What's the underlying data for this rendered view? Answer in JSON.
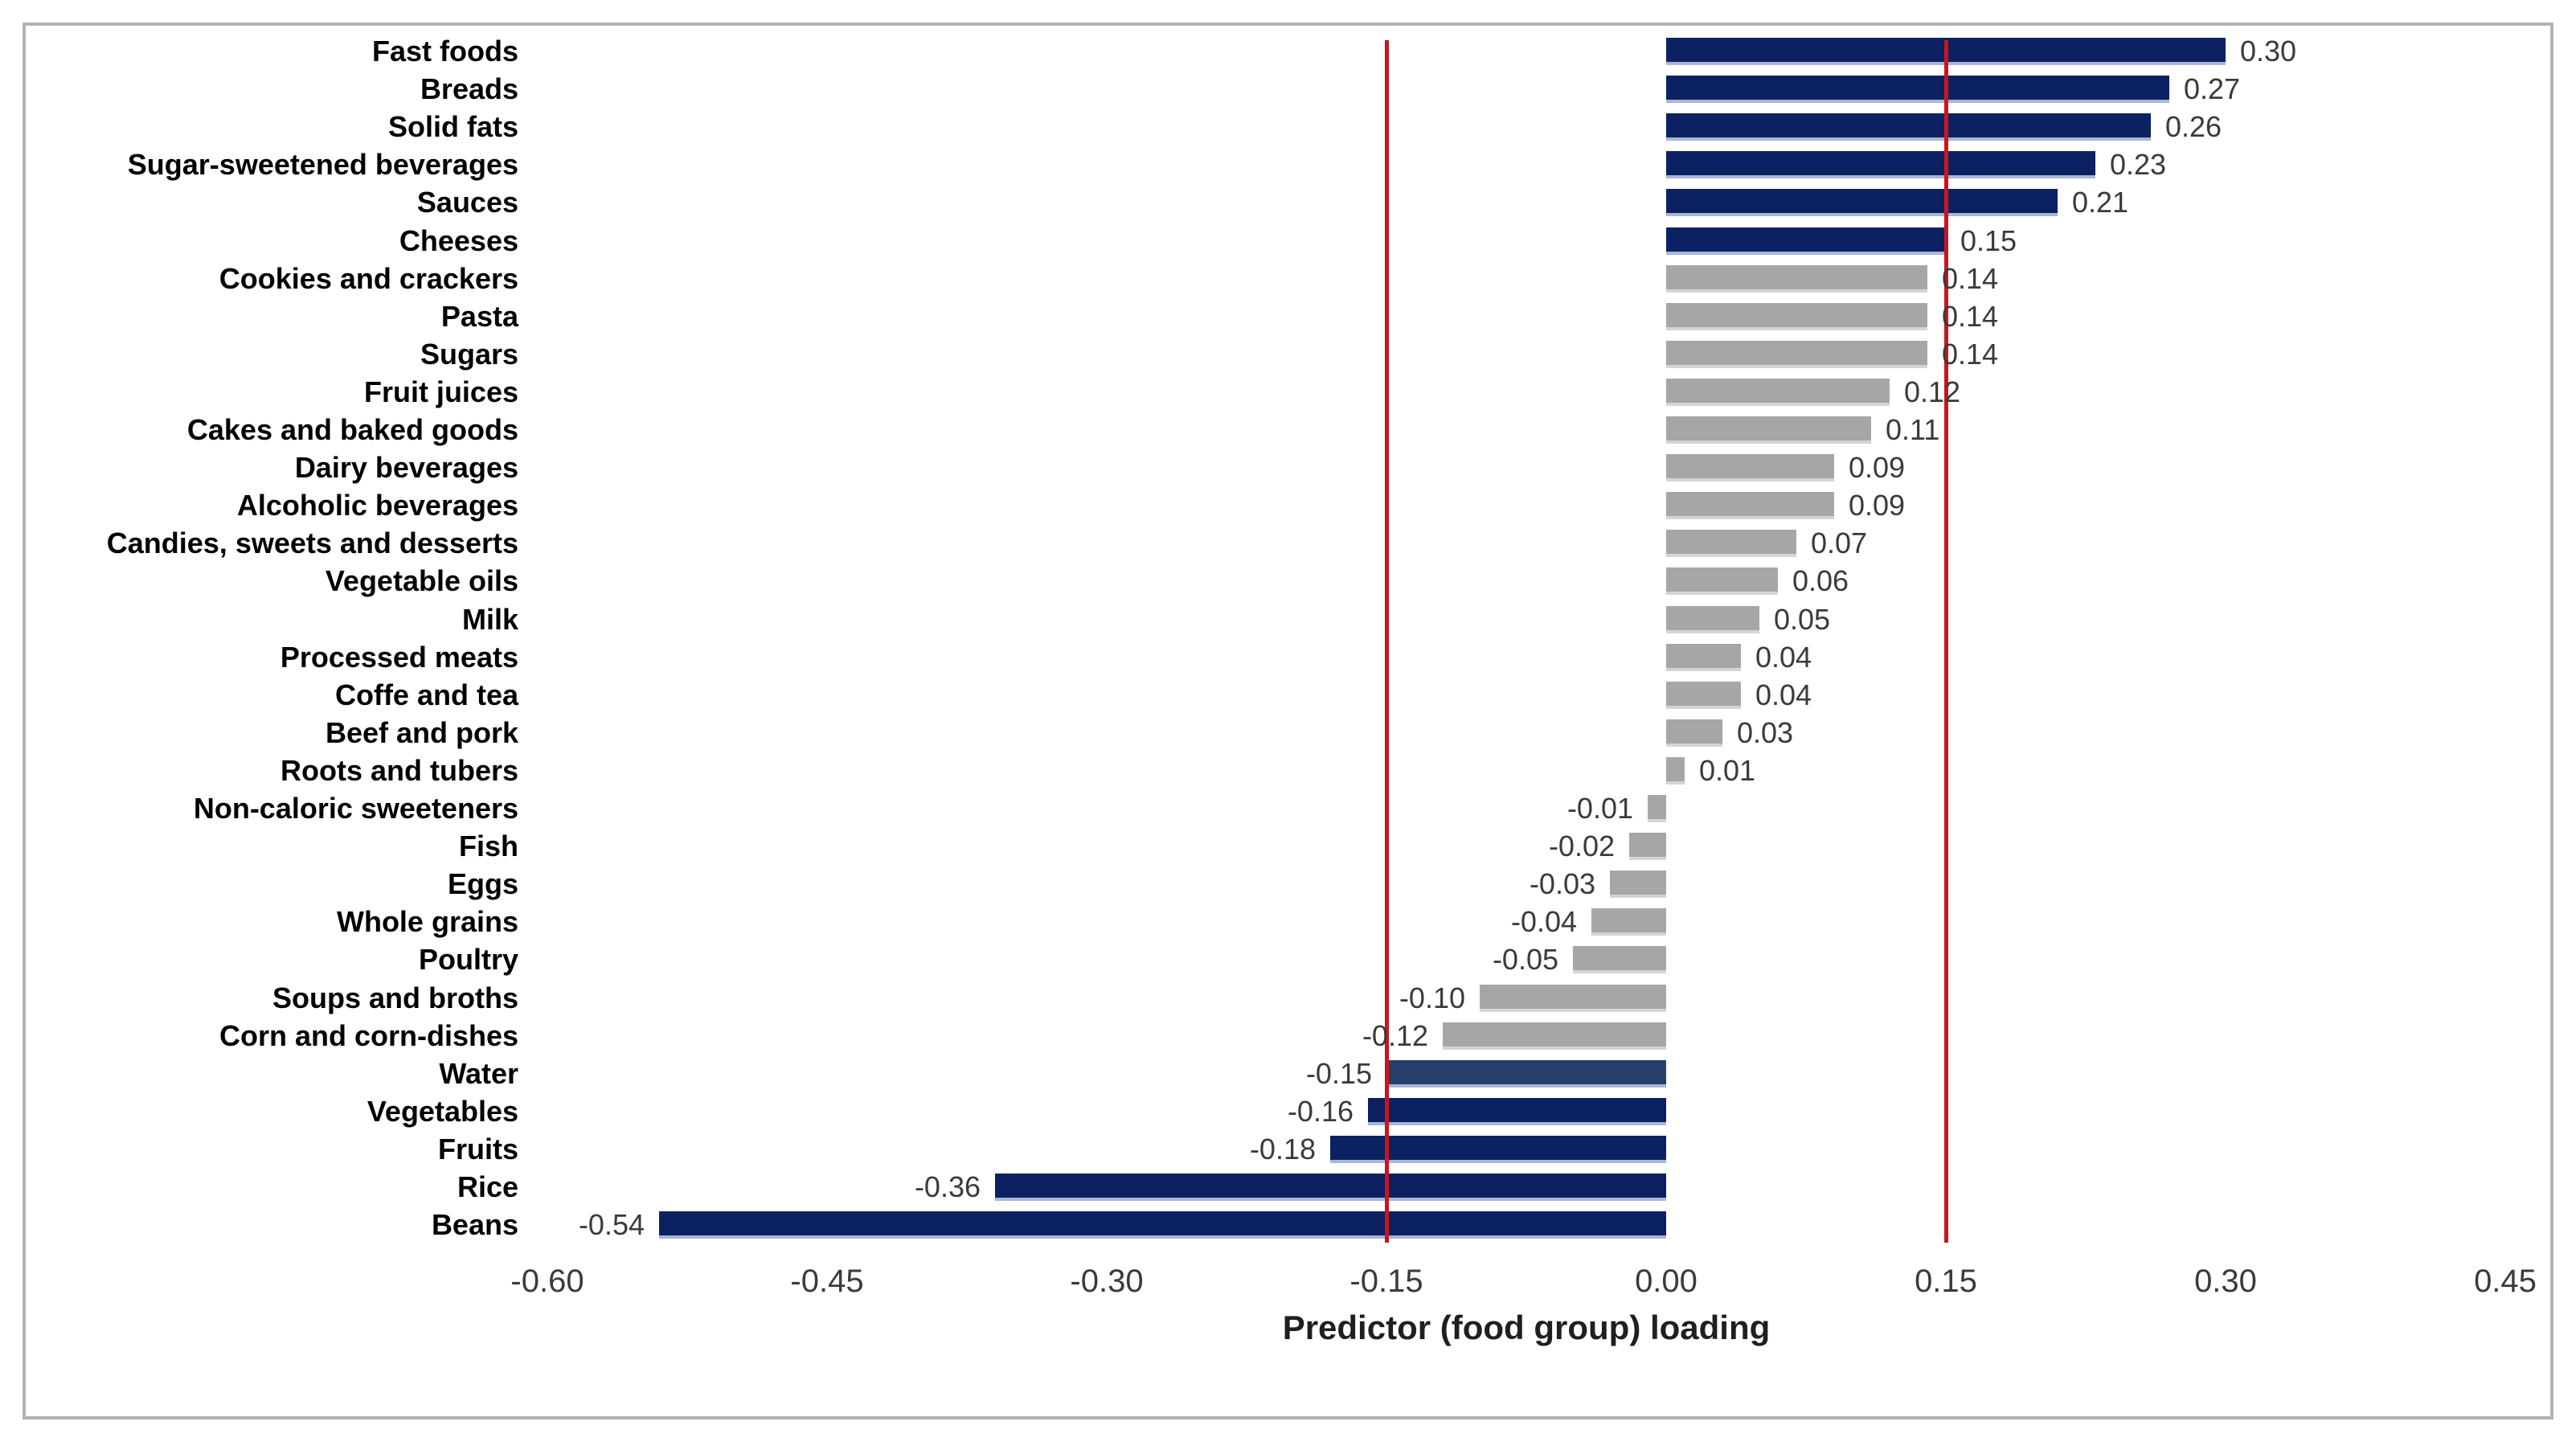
{
  "chart_data": {
    "type": "bar",
    "orientation": "horizontal",
    "xlabel": "Predictor (food group) loading",
    "xlim": [
      -0.6,
      0.45
    ],
    "xticks": [
      -0.6,
      -0.45,
      -0.3,
      -0.15,
      0.0,
      0.15,
      0.3,
      0.45
    ],
    "xtick_labels": [
      "-0.60",
      "-0.45",
      "-0.30",
      "-0.15",
      "0.00",
      "0.15",
      "0.30",
      "0.45"
    ],
    "grid": false,
    "legend": null,
    "threshold_lines": [
      -0.15,
      0.15
    ],
    "series": [
      {
        "name": "Predictor (food group) loading",
        "points": [
          {
            "label": "Fast foods",
            "value": 0.3,
            "display": "0.30",
            "color": "navy"
          },
          {
            "label": "Breads",
            "value": 0.27,
            "display": "0.27",
            "color": "navy"
          },
          {
            "label": "Solid fats",
            "value": 0.26,
            "display": "0.26",
            "color": "navy"
          },
          {
            "label": "Sugar-sweetened beverages",
            "value": 0.23,
            "display": "0.23",
            "color": "navy"
          },
          {
            "label": "Sauces",
            "value": 0.21,
            "display": "0.21",
            "color": "navy"
          },
          {
            "label": "Cheeses",
            "value": 0.15,
            "display": "0.15",
            "color": "navy"
          },
          {
            "label": "Cookies and crackers",
            "value": 0.14,
            "display": "0.14",
            "color": "gray"
          },
          {
            "label": "Pasta",
            "value": 0.14,
            "display": "0.14",
            "color": "gray"
          },
          {
            "label": "Sugars",
            "value": 0.14,
            "display": "0.14",
            "color": "gray"
          },
          {
            "label": "Fruit juices",
            "value": 0.12,
            "display": "0.12",
            "color": "gray"
          },
          {
            "label": "Cakes and baked goods",
            "value": 0.11,
            "display": "0.11",
            "color": "gray"
          },
          {
            "label": "Dairy beverages",
            "value": 0.09,
            "display": "0.09",
            "color": "gray"
          },
          {
            "label": "Alcoholic beverages",
            "value": 0.09,
            "display": "0.09",
            "color": "gray"
          },
          {
            "label": "Candies, sweets and desserts",
            "value": 0.07,
            "display": "0.07",
            "color": "gray"
          },
          {
            "label": "Vegetable oils",
            "value": 0.06,
            "display": "0.06",
            "color": "gray"
          },
          {
            "label": "Milk",
            "value": 0.05,
            "display": "0.05",
            "color": "gray"
          },
          {
            "label": "Processed meats",
            "value": 0.04,
            "display": "0.04",
            "color": "gray"
          },
          {
            "label": "Coffe and tea",
            "value": 0.04,
            "display": "0.04",
            "color": "gray"
          },
          {
            "label": "Beef and pork",
            "value": 0.03,
            "display": "0.03",
            "color": "gray"
          },
          {
            "label": "Roots and tubers",
            "value": 0.01,
            "display": "0.01",
            "color": "gray"
          },
          {
            "label": "Non-caloric sweeteners",
            "value": -0.01,
            "display": "-0.01",
            "color": "gray"
          },
          {
            "label": "Fish",
            "value": -0.02,
            "display": "-0.02",
            "color": "gray"
          },
          {
            "label": "Eggs",
            "value": -0.03,
            "display": "-0.03",
            "color": "gray"
          },
          {
            "label": "Whole grains",
            "value": -0.04,
            "display": "-0.04",
            "color": "gray"
          },
          {
            "label": "Poultry",
            "value": -0.05,
            "display": "-0.05",
            "color": "gray"
          },
          {
            "label": "Soups and broths",
            "value": -0.1,
            "display": "-0.10",
            "color": "gray"
          },
          {
            "label": "Corn and corn-dishes",
            "value": -0.12,
            "display": "-0.12",
            "color": "gray"
          },
          {
            "label": "Water",
            "value": -0.15,
            "display": "-0.15",
            "color": "navy_light"
          },
          {
            "label": "Vegetables",
            "value": -0.16,
            "display": "-0.16",
            "color": "navy"
          },
          {
            "label": "Fruits",
            "value": -0.18,
            "display": "-0.18",
            "color": "navy"
          },
          {
            "label": "Rice",
            "value": -0.36,
            "display": "-0.36",
            "color": "navy"
          },
          {
            "label": "Beans",
            "value": -0.54,
            "display": "-0.54",
            "color": "navy"
          }
        ]
      }
    ]
  },
  "colors": {
    "bar_navy": "#0B2161",
    "bar_navy_light": "#263E6B",
    "bar_gray": "#A6A6A6",
    "navy_shadow": "#A9B6D5",
    "gray_shadow": "#D4D4D4",
    "threshold_red": "#C9151C",
    "frame_border": "#B2B2B2",
    "value_text": "#3A3A3A",
    "tick_text": "#3A3A3A",
    "category_text": "#000000",
    "axis_title_text": "#1F1F1F",
    "background": "#FFFFFF"
  }
}
